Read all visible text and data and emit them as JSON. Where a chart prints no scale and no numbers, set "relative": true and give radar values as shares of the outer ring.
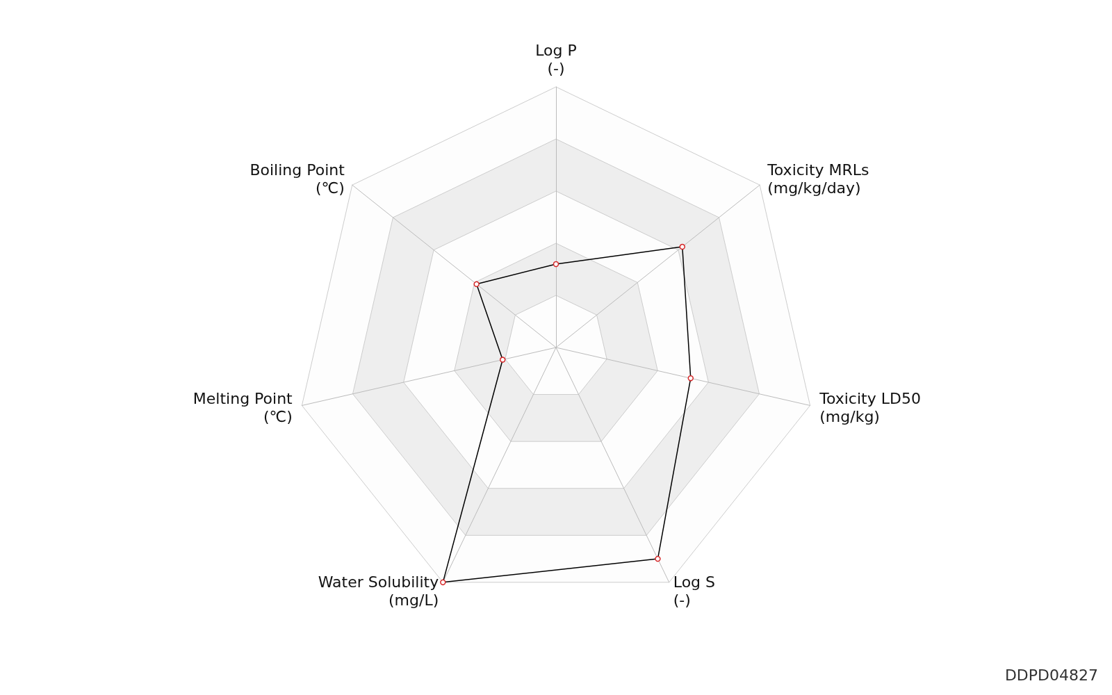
{
  "chart_data": {
    "type": "radar",
    "relative": true,
    "categories": [
      "Log P\n(-)",
      "Toxicity MRLs\n(mg/kg/day)",
      "Toxicity LD50\n(mg/kg)",
      "Log S\n(-)",
      "Water Solubility\n(mg/L)",
      "Melting Point\n(℃)",
      "Boiling Point\n(℃)"
    ],
    "series": [
      {
        "color": "#000000",
        "values": [
          0.32,
          0.62,
          0.53,
          0.9,
          1.0,
          0.21,
          0.39
        ]
      }
    ],
    "marker": "circle",
    "grid": true,
    "annotations": [
      "DDPD04827"
    ]
  }
}
